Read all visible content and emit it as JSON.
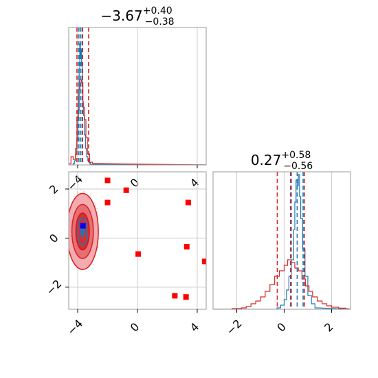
{
  "chart_data": [
    {
      "type": "histogram",
      "panel": "top-left",
      "title": {
        "main": "−3.67",
        "sup": "+0.40",
        "sub": "−0.38"
      },
      "xlim": [
        -4.6,
        4.6
      ],
      "x_ticks": [
        -4,
        0,
        4
      ],
      "grid": true,
      "series": [
        {
          "color": "#1f77b4",
          "bins": [
            [
              -4.3,
              0.01
            ],
            [
              -4.22,
              0.03
            ],
            [
              -4.14,
              0.08
            ],
            [
              -4.06,
              0.18
            ],
            [
              -3.98,
              0.4
            ],
            [
              -3.9,
              0.7
            ],
            [
              -3.86,
              0.88
            ],
            [
              -3.82,
              0.8
            ],
            [
              -3.78,
              0.84
            ],
            [
              -3.74,
              0.72
            ],
            [
              -3.7,
              0.58
            ],
            [
              -3.66,
              0.46
            ],
            [
              -3.62,
              0.36
            ],
            [
              -3.56,
              0.22
            ],
            [
              -3.48,
              0.12
            ],
            [
              -3.4,
              0.06
            ],
            [
              -3.32,
              0.03
            ],
            [
              -3.24,
              0.015
            ],
            [
              -3.16,
              0.005
            ]
          ]
        },
        {
          "color": "#d62728",
          "bins": [
            [
              -4.6,
              0.01
            ],
            [
              -4.45,
              0.06
            ],
            [
              -4.3,
              0.04
            ],
            [
              -4.15,
              0.12
            ],
            [
              -4.05,
              0.35
            ],
            [
              -3.95,
              0.55
            ],
            [
              -3.85,
              0.62
            ],
            [
              -3.75,
              0.6
            ],
            [
              -3.65,
              0.42
            ],
            [
              -3.55,
              0.33
            ],
            [
              -3.45,
              0.2
            ],
            [
              -3.35,
              0.08
            ],
            [
              -3.2,
              0.02
            ],
            [
              -3.0,
              0.01
            ]
          ]
        }
      ],
      "quantile_lines": [
        {
          "color": "#1f77b4",
          "values": [
            -3.92,
            -3.8,
            -3.7
          ]
        },
        {
          "color": "#d62728",
          "values": [
            -4.05,
            -3.67,
            -3.27
          ]
        }
      ]
    },
    {
      "type": "histogram",
      "panel": "bottom-right",
      "title": {
        "main": "0.27",
        "sup": "+0.58",
        "sub": "−0.56"
      },
      "xlim": [
        -3.0,
        2.8
      ],
      "x_ticks": [
        -2,
        0,
        2
      ],
      "grid": true,
      "series": [
        {
          "color": "#1f77b4",
          "bins": [
            [
              -0.3,
              0.01
            ],
            [
              -0.15,
              0.03
            ],
            [
              0.0,
              0.07
            ],
            [
              0.1,
              0.14
            ],
            [
              0.2,
              0.24
            ],
            [
              0.3,
              0.36
            ],
            [
              0.4,
              0.58
            ],
            [
              0.45,
              0.78
            ],
            [
              0.5,
              0.94
            ],
            [
              0.55,
              0.9
            ],
            [
              0.6,
              0.98
            ],
            [
              0.65,
              0.82
            ],
            [
              0.7,
              0.66
            ],
            [
              0.78,
              0.44
            ],
            [
              0.88,
              0.24
            ],
            [
              1.0,
              0.1
            ],
            [
              1.15,
              0.04
            ],
            [
              1.3,
              0.01
            ]
          ]
        },
        {
          "color": "#d62728",
          "bins": [
            [
              -2.2,
              0.005
            ],
            [
              -1.8,
              0.01
            ],
            [
              -1.6,
              0.02
            ],
            [
              -1.4,
              0.04
            ],
            [
              -1.2,
              0.06
            ],
            [
              -1.0,
              0.09
            ],
            [
              -0.8,
              0.13
            ],
            [
              -0.6,
              0.18
            ],
            [
              -0.4,
              0.24
            ],
            [
              -0.2,
              0.28
            ],
            [
              0.0,
              0.32
            ],
            [
              0.15,
              0.36
            ],
            [
              0.3,
              0.34
            ],
            [
              0.45,
              0.3
            ],
            [
              0.6,
              0.28
            ],
            [
              0.75,
              0.22
            ],
            [
              0.9,
              0.17
            ],
            [
              1.05,
              0.13
            ],
            [
              1.2,
              0.09
            ],
            [
              1.4,
              0.06
            ],
            [
              1.6,
              0.04
            ],
            [
              1.8,
              0.025
            ],
            [
              2.0,
              0.015
            ],
            [
              2.3,
              0.008
            ],
            [
              2.6,
              0.004
            ]
          ]
        }
      ],
      "quantile_lines": [
        {
          "color": "#1f77b4",
          "values": [
            0.3,
            0.55,
            0.8
          ]
        },
        {
          "color": "#d62728",
          "values": [
            -0.29,
            0.27,
            0.85
          ]
        }
      ]
    },
    {
      "type": "scatter",
      "panel": "bottom-left",
      "xlim": [
        -4.6,
        4.6
      ],
      "ylim": [
        -2.9,
        2.7
      ],
      "x_ticks": [
        -4,
        0,
        4
      ],
      "y_ticks": [
        -2,
        0,
        2
      ],
      "grid": true,
      "contours": {
        "center": [
          -3.67,
          0.27
        ],
        "levels": [
          {
            "rx": 1.05,
            "ry": 1.55,
            "fill": "#f4a3a8",
            "stroke": "#d62728"
          },
          {
            "rx": 0.72,
            "ry": 1.1,
            "fill": "#e8676d",
            "stroke": "#d62728"
          },
          {
            "rx": 0.45,
            "ry": 0.75,
            "fill": "#d62728",
            "stroke": "#c41e24"
          },
          {
            "rx": 0.32,
            "ry": 0.55,
            "fill": "none",
            "stroke": "#1f77b4"
          },
          {
            "rx": 0.12,
            "ry": 0.22,
            "fill": "#1f77b4",
            "stroke": "#1f77b4"
          }
        ]
      },
      "points_red": [
        [
          -2.0,
          2.35
        ],
        [
          -0.75,
          1.95
        ],
        [
          -2.0,
          1.45
        ],
        [
          3.4,
          1.45
        ],
        [
          0.05,
          -0.65
        ],
        [
          3.3,
          -0.35
        ],
        [
          4.5,
          -0.95
        ],
        [
          2.5,
          -2.35
        ],
        [
          3.25,
          -2.4
        ]
      ],
      "point_blue": [
        -3.65,
        0.5
      ]
    }
  ]
}
